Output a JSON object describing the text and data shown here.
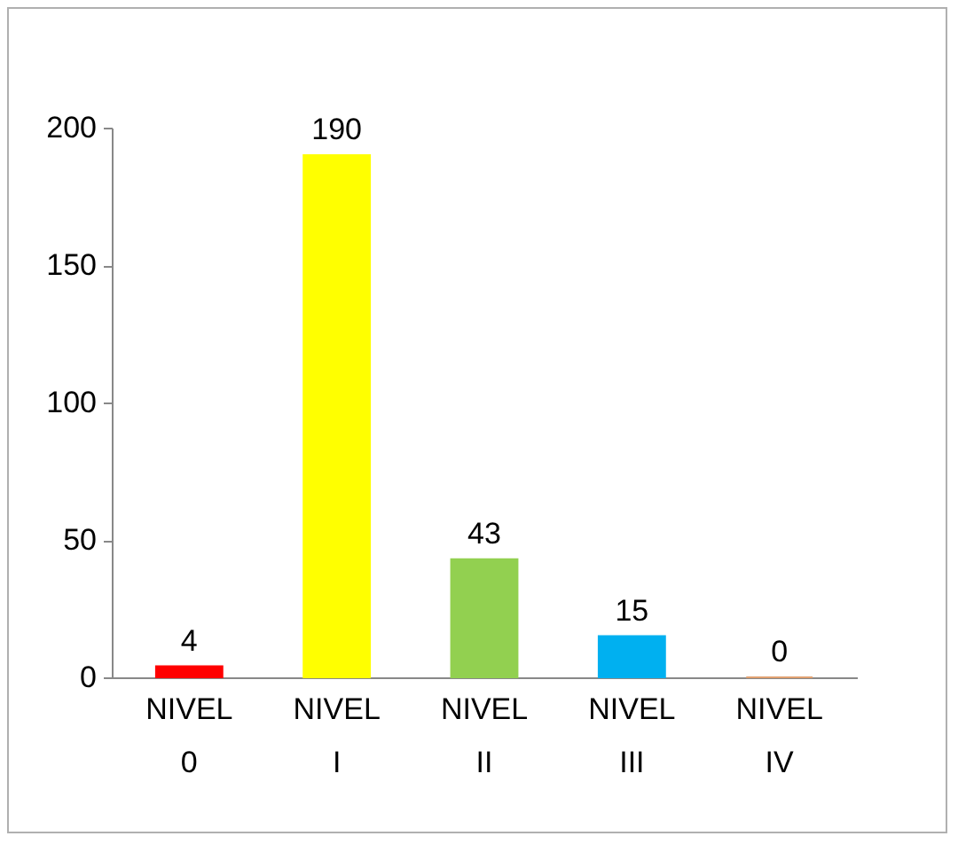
{
  "chart_data": {
    "type": "bar",
    "categories": [
      "NIVEL 0",
      "NIVEL I",
      "NIVEL II",
      "NIVEL III",
      "NIVEL IV"
    ],
    "values": [
      4,
      190,
      43,
      15,
      0
    ],
    "colors": [
      "#ff0000",
      "#ffff00",
      "#92d050",
      "#00b0f0",
      "#e0a070"
    ],
    "ylim": [
      0,
      200
    ],
    "yticks": [
      0,
      50,
      100,
      150,
      200
    ],
    "data_labels": true
  }
}
